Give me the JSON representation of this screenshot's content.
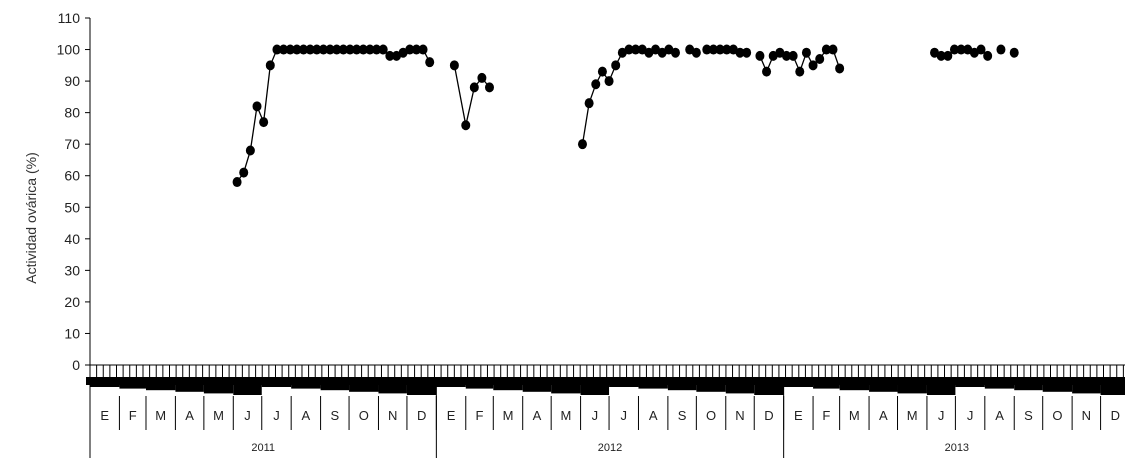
{
  "chart_data": {
    "type": "line",
    "title": "",
    "ylabel": "Actividad ovárica (%)",
    "xlabel": "",
    "ylim": [
      0,
      110
    ],
    "yticks": [
      "0",
      "10",
      "20",
      "30",
      "40",
      "50",
      "60",
      "70",
      "80",
      "90",
      "100",
      "110"
    ],
    "years": [
      "2011",
      "2012",
      "2013"
    ],
    "months": [
      "E",
      "F",
      "M",
      "A",
      "M",
      "J",
      "J",
      "A",
      "S",
      "O",
      "N",
      "D"
    ],
    "grid": false,
    "legend": "none",
    "line_color": "#000000",
    "marker_color": "#000000",
    "series": [
      {
        "segments": [
          [
            [
              "2011-06-05",
              58
            ],
            [
              "2011-06-12",
              61
            ],
            [
              "2011-06-19",
              68
            ],
            [
              "2011-06-26",
              82
            ],
            [
              "2011-07-03",
              77
            ],
            [
              "2011-07-10",
              95
            ],
            [
              "2011-07-17",
              100
            ],
            [
              "2011-07-24",
              100
            ],
            [
              "2011-07-31",
              100
            ],
            [
              "2011-08-07",
              100
            ],
            [
              "2011-08-14",
              100
            ],
            [
              "2011-08-21",
              100
            ],
            [
              "2011-08-28",
              100
            ],
            [
              "2011-09-04",
              100
            ],
            [
              "2011-09-11",
              100
            ],
            [
              "2011-09-18",
              100
            ],
            [
              "2011-09-25",
              100
            ],
            [
              "2011-10-02",
              100
            ],
            [
              "2011-10-09",
              100
            ],
            [
              "2011-10-16",
              100
            ],
            [
              "2011-10-23",
              100
            ],
            [
              "2011-10-30",
              100
            ],
            [
              "2011-11-06",
              100
            ],
            [
              "2011-11-13",
              98
            ],
            [
              "2011-11-20",
              98
            ],
            [
              "2011-11-27",
              99
            ],
            [
              "2011-12-04",
              100
            ],
            [
              "2011-12-11",
              100
            ],
            [
              "2011-12-18",
              100
            ],
            [
              "2011-12-25",
              96
            ]
          ],
          [
            [
              "2012-01-20",
              95
            ],
            [
              "2012-02-01",
              76
            ],
            [
              "2012-02-10",
              88
            ],
            [
              "2012-02-18",
              91
            ],
            [
              "2012-02-26",
              88
            ]
          ],
          [
            [
              "2012-06-03",
              70
            ],
            [
              "2012-06-10",
              83
            ],
            [
              "2012-06-17",
              89
            ],
            [
              "2012-06-24",
              93
            ],
            [
              "2012-07-01",
              90
            ],
            [
              "2012-07-08",
              95
            ],
            [
              "2012-07-15",
              99
            ],
            [
              "2012-07-22",
              100
            ],
            [
              "2012-07-29",
              100
            ],
            [
              "2012-08-05",
              100
            ],
            [
              "2012-08-12",
              99
            ],
            [
              "2012-08-19",
              100
            ],
            [
              "2012-08-26",
              99
            ],
            [
              "2012-09-02",
              100
            ],
            [
              "2012-09-09",
              99
            ]
          ],
          [
            [
              "2012-09-24",
              100
            ],
            [
              "2012-10-01",
              99
            ]
          ],
          [
            [
              "2012-10-12",
              100
            ],
            [
              "2012-10-19",
              100
            ],
            [
              "2012-10-26",
              100
            ],
            [
              "2012-11-02",
              100
            ],
            [
              "2012-11-09",
              100
            ],
            [
              "2012-11-16",
              99
            ],
            [
              "2012-11-23",
              99
            ]
          ],
          [
            [
              "2012-12-07",
              98
            ],
            [
              "2012-12-14",
              93
            ],
            [
              "2012-12-21",
              98
            ],
            [
              "2012-12-28",
              99
            ],
            [
              "2013-01-04",
              98
            ],
            [
              "2013-01-11",
              98
            ],
            [
              "2013-01-18",
              93
            ],
            [
              "2013-01-25",
              99
            ],
            [
              "2013-02-01",
              95
            ],
            [
              "2013-02-08",
              97
            ],
            [
              "2013-02-15",
              100
            ],
            [
              "2013-02-22",
              100
            ],
            [
              "2013-03-01",
              94
            ]
          ],
          [
            [
              "2013-06-09",
              99
            ],
            [
              "2013-06-16",
              98
            ],
            [
              "2013-06-23",
              98
            ],
            [
              "2013-06-30",
              100
            ],
            [
              "2013-07-07",
              100
            ],
            [
              "2013-07-14",
              100
            ],
            [
              "2013-07-21",
              99
            ],
            [
              "2013-07-28",
              100
            ],
            [
              "2013-08-04",
              98
            ]
          ],
          [
            [
              "2013-08-18",
              100
            ]
          ],
          [
            [
              "2013-09-01",
              99
            ]
          ]
        ]
      }
    ]
  }
}
